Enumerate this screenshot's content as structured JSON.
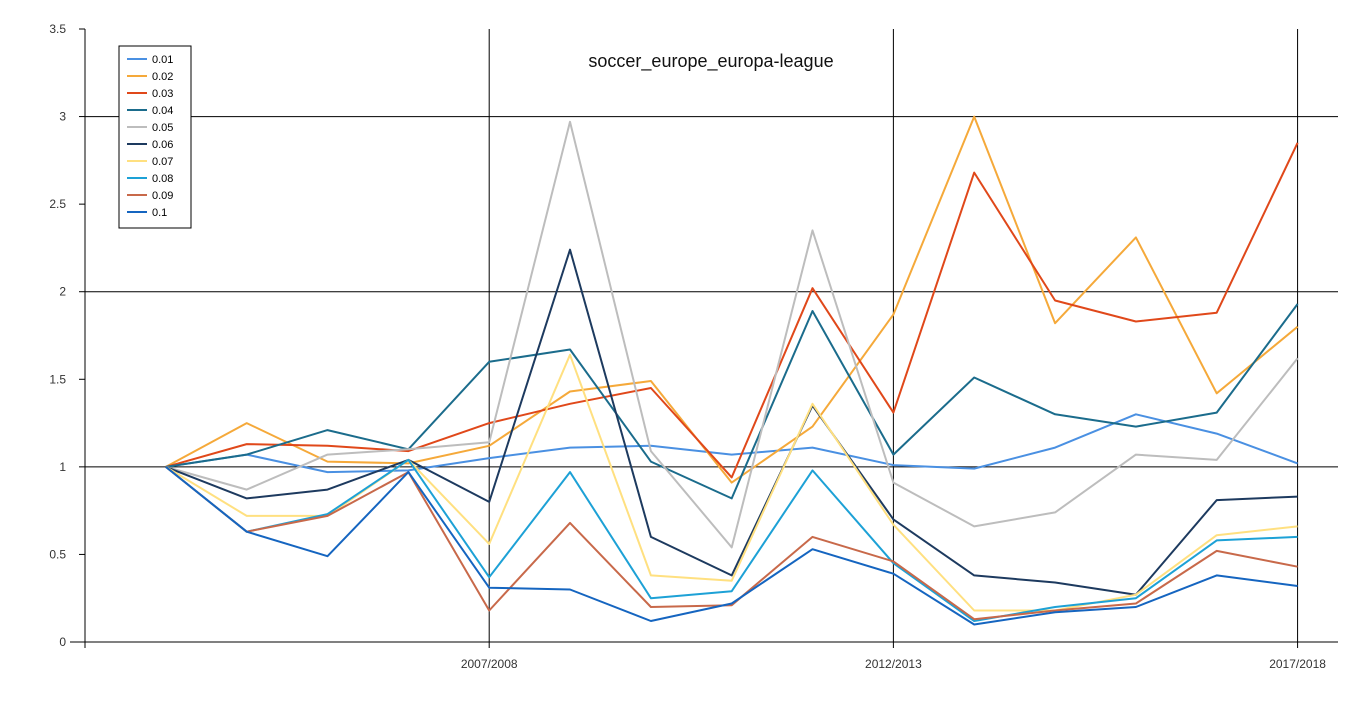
{
  "chart_data": {
    "type": "line",
    "title": "soccer_europe_europa-league",
    "xlabel": "",
    "ylabel": "",
    "x_tick_labels": [
      {
        "index": 4,
        "label": "2007/2008"
      },
      {
        "index": 9,
        "label": "2012/2013"
      },
      {
        "index": 14,
        "label": "2017/2018"
      }
    ],
    "x_range": [
      -1,
      14.5
    ],
    "ylim": [
      0,
      3.5
    ],
    "y_ticks": [
      "0",
      "0.5",
      "1",
      "1.5",
      "2",
      "2.5",
      "3",
      "3.5"
    ],
    "y_tick_values": [
      0,
      0.5,
      1,
      1.5,
      2,
      2.5,
      3,
      3.5
    ],
    "grid": {
      "horizontal_at": [
        1,
        2,
        3
      ],
      "vertical_at_indices": [
        4,
        9,
        14
      ]
    },
    "legend_position": "top-left",
    "series": [
      {
        "name": "0.01",
        "color": "#4a90e2",
        "values": [
          1,
          1.07,
          0.97,
          0.98,
          1.05,
          1.11,
          1.12,
          1.07,
          1.11,
          1.01,
          0.99,
          1.11,
          1.3,
          1.19,
          1.02
        ]
      },
      {
        "name": "0.02",
        "color": "#f5a93a",
        "values": [
          1,
          1.25,
          1.03,
          1.02,
          1.12,
          1.43,
          1.49,
          0.91,
          1.23,
          1.87,
          3.0,
          1.82,
          2.31,
          1.42,
          1.8
        ]
      },
      {
        "name": "0.03",
        "color": "#e0481a",
        "values": [
          1,
          1.13,
          1.12,
          1.09,
          1.25,
          1.36,
          1.45,
          0.94,
          2.02,
          1.31,
          2.68,
          1.95,
          1.83,
          1.88,
          2.85
        ]
      },
      {
        "name": "0.04",
        "color": "#1b6c8c",
        "values": [
          1,
          1.07,
          1.21,
          1.1,
          1.6,
          1.67,
          1.03,
          0.82,
          1.89,
          1.07,
          1.51,
          1.3,
          1.23,
          1.31,
          1.93
        ]
      },
      {
        "name": "0.05",
        "color": "#bdbdbd",
        "values": [
          1,
          0.87,
          1.07,
          1.1,
          1.14,
          2.97,
          1.09,
          0.54,
          2.35,
          0.91,
          0.66,
          0.74,
          1.07,
          1.04,
          1.62
        ]
      },
      {
        "name": "0.06",
        "color": "#1d3a5f",
        "values": [
          1,
          0.82,
          0.87,
          1.04,
          0.8,
          2.24,
          0.6,
          0.38,
          1.35,
          0.7,
          0.38,
          0.34,
          0.27,
          0.81,
          0.83
        ]
      },
      {
        "name": "0.07",
        "color": "#ffe080",
        "values": [
          1,
          0.72,
          0.72,
          1.04,
          0.56,
          1.64,
          0.38,
          0.35,
          1.36,
          0.67,
          0.18,
          0.18,
          0.27,
          0.61,
          0.66
        ]
      },
      {
        "name": "0.08",
        "color": "#1da1d6",
        "values": [
          1,
          0.63,
          0.73,
          1.04,
          0.37,
          0.97,
          0.25,
          0.29,
          0.98,
          0.45,
          0.12,
          0.2,
          0.25,
          0.58,
          0.6
        ]
      },
      {
        "name": "0.09",
        "color": "#c8694a",
        "values": [
          1,
          0.63,
          0.72,
          0.97,
          0.18,
          0.68,
          0.2,
          0.21,
          0.6,
          0.46,
          0.13,
          0.18,
          0.22,
          0.52,
          0.43
        ]
      },
      {
        "name": "0.1",
        "color": "#1565c0",
        "values": [
          1,
          0.63,
          0.49,
          0.97,
          0.31,
          0.3,
          0.12,
          0.22,
          0.53,
          0.39,
          0.1,
          0.17,
          0.2,
          0.38,
          0.32
        ]
      }
    ]
  }
}
